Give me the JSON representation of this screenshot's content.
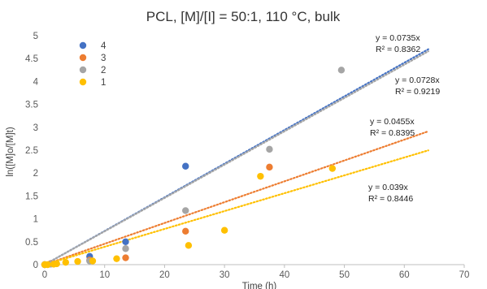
{
  "chart_data": {
    "type": "scatter",
    "title": "PCL, [M]/[I] = 50:1, 110 °C, bulk",
    "xlabel": "Time (h)",
    "ylabel": "ln([M]o/[M]t)",
    "xlim": [
      0,
      70
    ],
    "ylim": [
      0,
      5
    ],
    "xticks": [
      "0",
      "10",
      "20",
      "30",
      "40",
      "50",
      "60",
      "70"
    ],
    "yticks": [
      "0",
      "0.5",
      "1",
      "1.5",
      "2",
      "2.5",
      "3",
      "3.5",
      "4",
      "4.5",
      "5"
    ],
    "grid": false,
    "legend_position": "top-left",
    "trendline_style": "dotted",
    "series": [
      {
        "name": "4",
        "color": "#4472C4",
        "points": [
          [
            0,
            0
          ],
          [
            1,
            0.02
          ],
          [
            7.5,
            0.18
          ],
          [
            13.5,
            0.5
          ],
          [
            23.5,
            2.15
          ]
        ],
        "trendline": {
          "slope": 0.0735,
          "x_end": 64,
          "equation": "y = 0.0735x",
          "r2": "R² = 0.8362"
        }
      },
      {
        "name": "3",
        "color": "#ED7D31",
        "points": [
          [
            0,
            0
          ],
          [
            1,
            0.02
          ],
          [
            7.5,
            0.1
          ],
          [
            13.5,
            0.15
          ],
          [
            23.5,
            0.73
          ],
          [
            37.5,
            2.13
          ]
        ],
        "trendline": {
          "slope": 0.0455,
          "x_end": 64,
          "equation": "y = 0.0455x",
          "r2": "R² = 0.8395"
        }
      },
      {
        "name": "2",
        "color": "#A5A5A5",
        "points": [
          [
            0,
            0
          ],
          [
            1,
            0.01
          ],
          [
            7.5,
            0.08
          ],
          [
            13.5,
            0.35
          ],
          [
            23.5,
            1.18
          ],
          [
            37.5,
            2.52
          ],
          [
            49.5,
            4.25
          ]
        ],
        "trendline": {
          "slope": 0.0728,
          "x_end": 64,
          "equation": "y = 0.0728x",
          "r2": "R² = 0.9219"
        }
      },
      {
        "name": "1",
        "color": "#FFC000",
        "points": [
          [
            0,
            0
          ],
          [
            0.5,
            0
          ],
          [
            1.5,
            0.01
          ],
          [
            2,
            0.02
          ],
          [
            3.5,
            0.05
          ],
          [
            5.5,
            0.07
          ],
          [
            8,
            0.08
          ],
          [
            12,
            0.13
          ],
          [
            24,
            0.42
          ],
          [
            30,
            0.75
          ],
          [
            36,
            1.93
          ],
          [
            48,
            2.1
          ]
        ],
        "trendline": {
          "slope": 0.039,
          "x_end": 64,
          "equation": "y = 0.039x",
          "r2": "R² = 0.8446"
        }
      }
    ]
  }
}
